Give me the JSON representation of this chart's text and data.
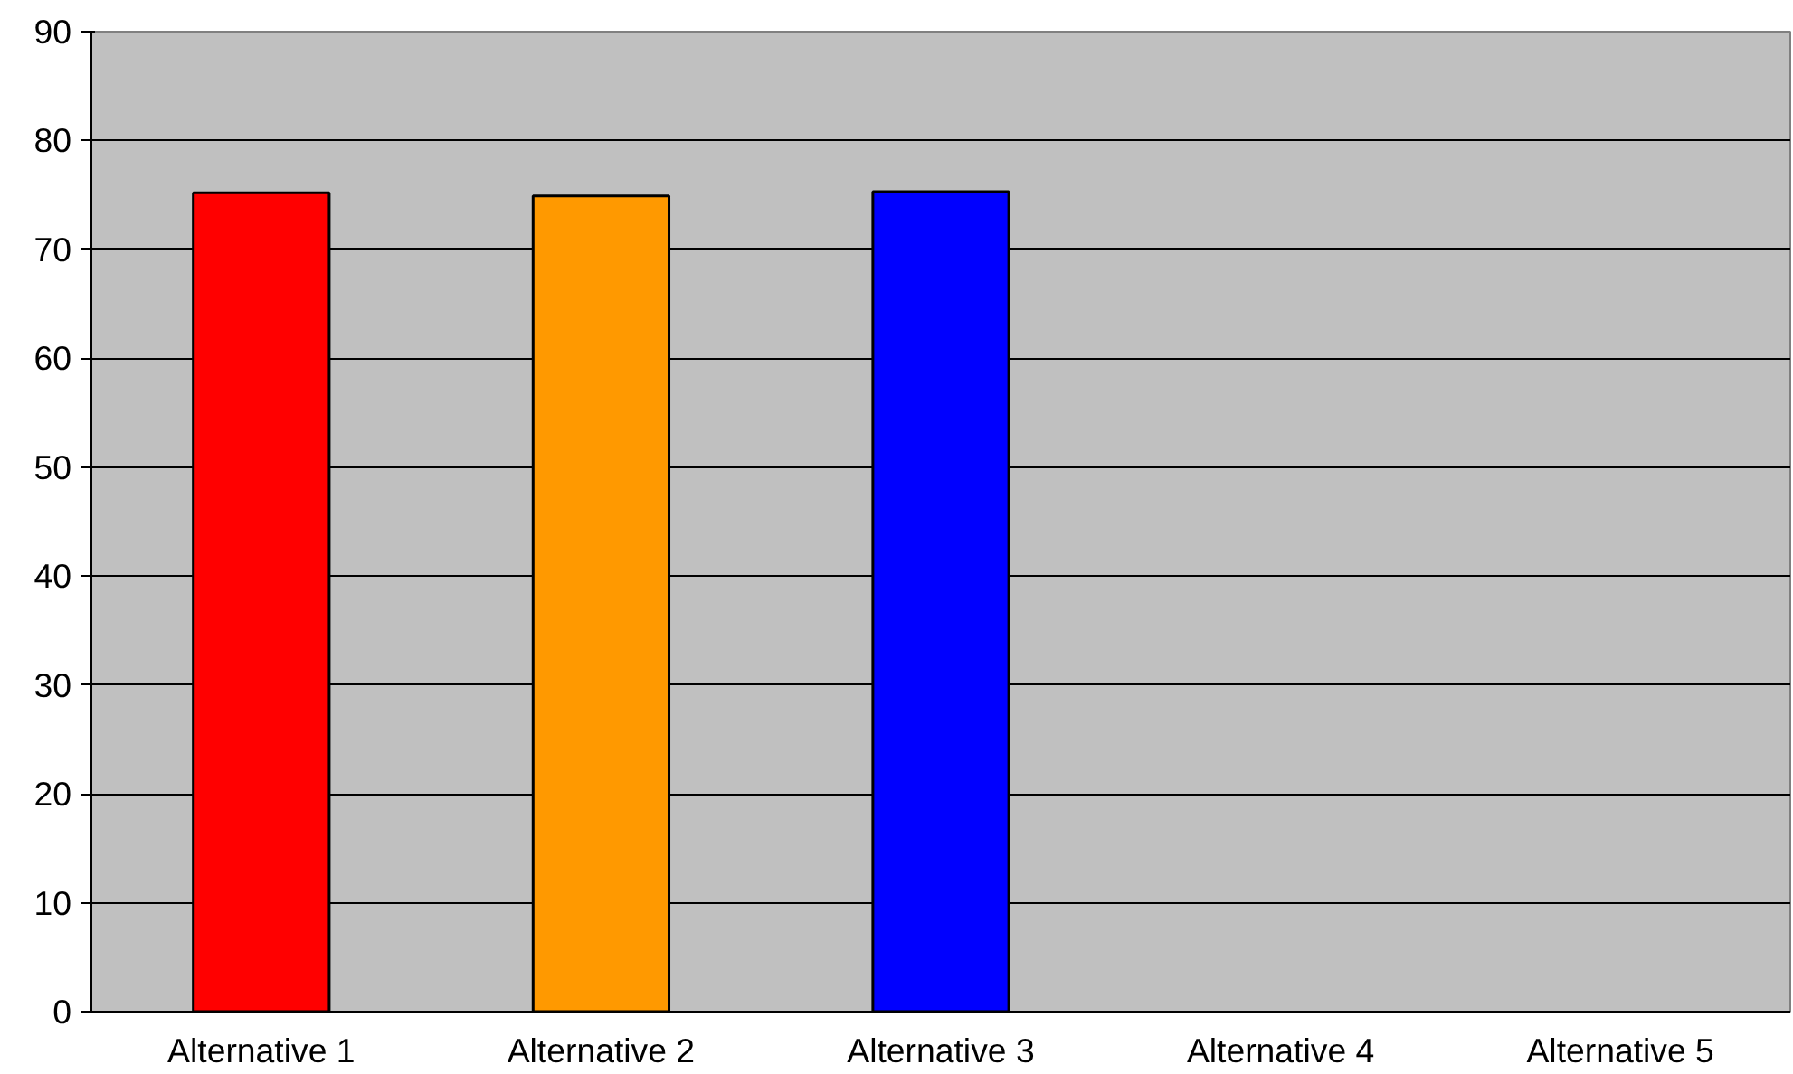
{
  "chart_data": {
    "type": "bar",
    "categories": [
      "Alternative 1",
      "Alternative 2",
      "Alternative 3",
      "Alternative 4",
      "Alternative 5"
    ],
    "values": [
      75.2,
      74.9,
      75.3,
      null,
      null
    ],
    "colors": [
      "#ff0000",
      "#ff9900",
      "#0000ff",
      "#808080",
      "#808080"
    ],
    "ylim": [
      0,
      90
    ],
    "yticks": [
      0,
      10,
      20,
      30,
      40,
      50,
      60,
      70,
      80,
      90
    ],
    "grid": "y"
  }
}
